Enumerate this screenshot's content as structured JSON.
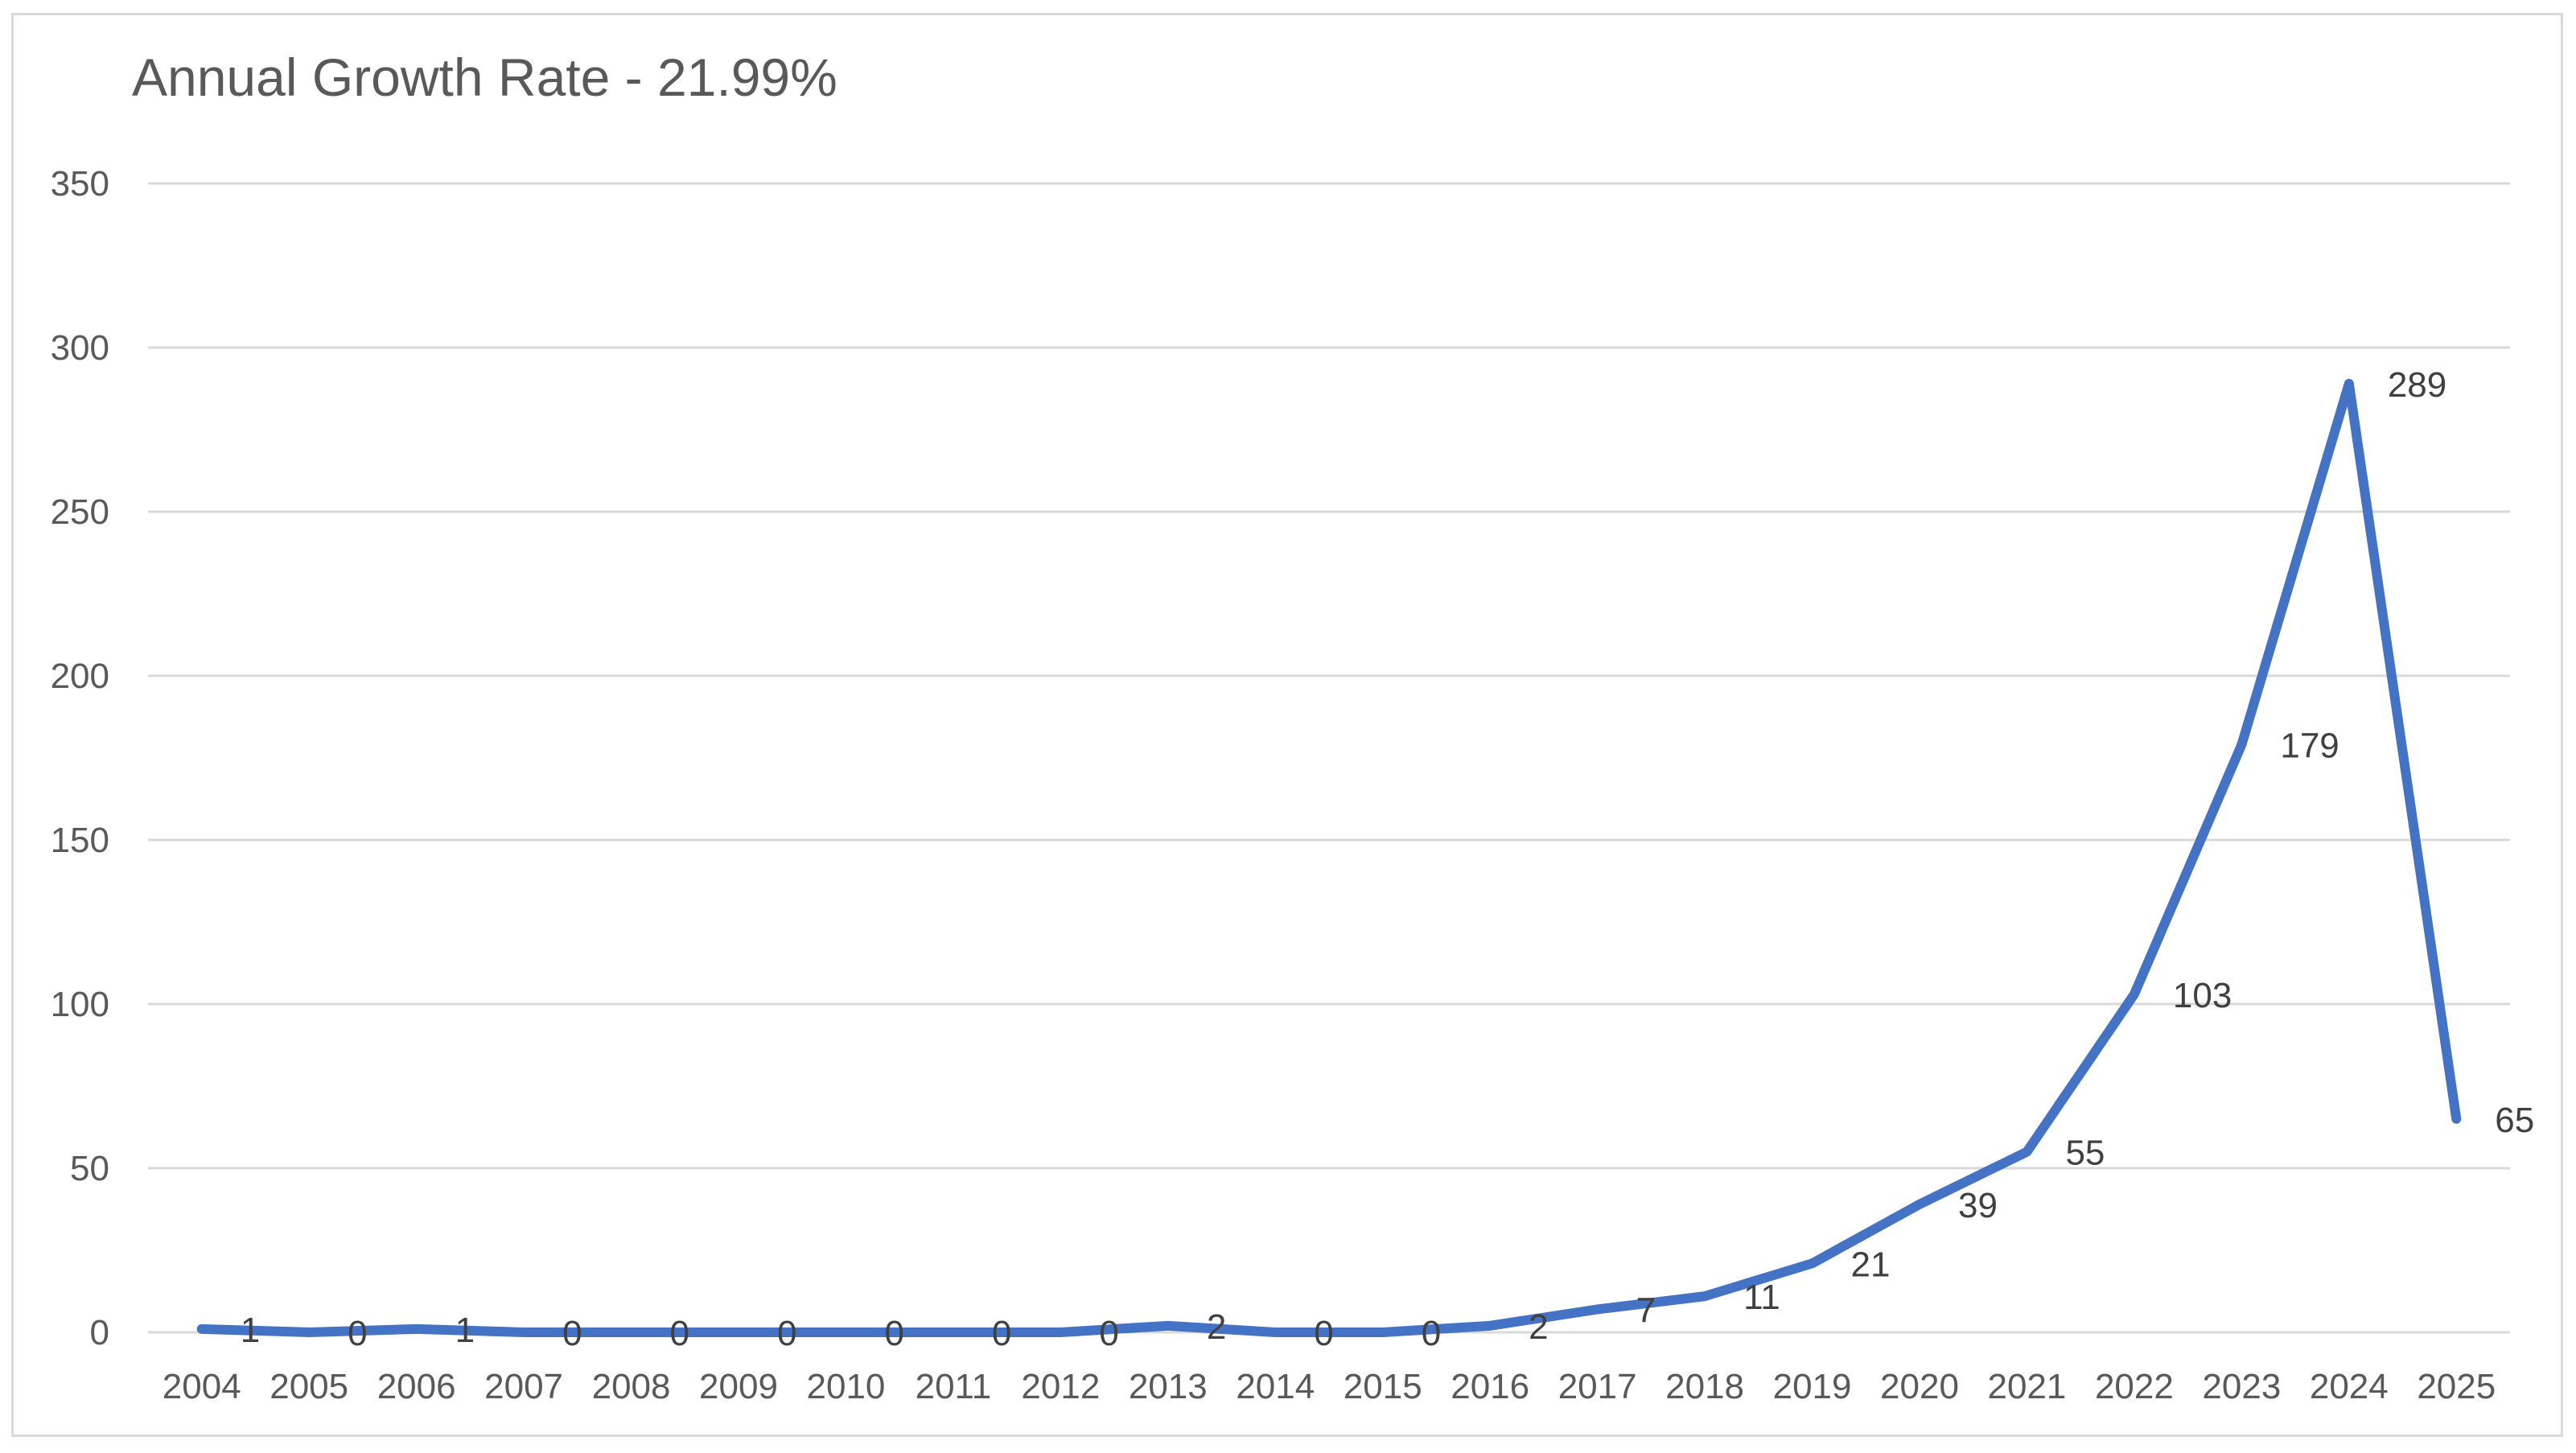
{
  "chart_data": {
    "type": "line",
    "title": "Annual Growth Rate - 21.99%",
    "xlabel": "",
    "ylabel": "",
    "categories": [
      "2004",
      "2005",
      "2006",
      "2007",
      "2008",
      "2009",
      "2010",
      "2011",
      "2012",
      "2013",
      "2014",
      "2015",
      "2016",
      "2017",
      "2018",
      "2019",
      "2020",
      "2021",
      "2022",
      "2023",
      "2024",
      "2025"
    ],
    "series": [
      {
        "values": [
          1,
          0,
          1,
          0,
          0,
          0,
          0,
          0,
          0,
          2,
          0,
          0,
          2,
          7,
          11,
          21,
          39,
          55,
          103,
          179,
          289,
          65
        ],
        "color": "#4472c4"
      }
    ],
    "ylim": [
      0,
      350
    ],
    "yticks": [
      0,
      50,
      100,
      150,
      200,
      250,
      300,
      350
    ],
    "grid": true,
    "legend": "none",
    "data_labels": true
  }
}
